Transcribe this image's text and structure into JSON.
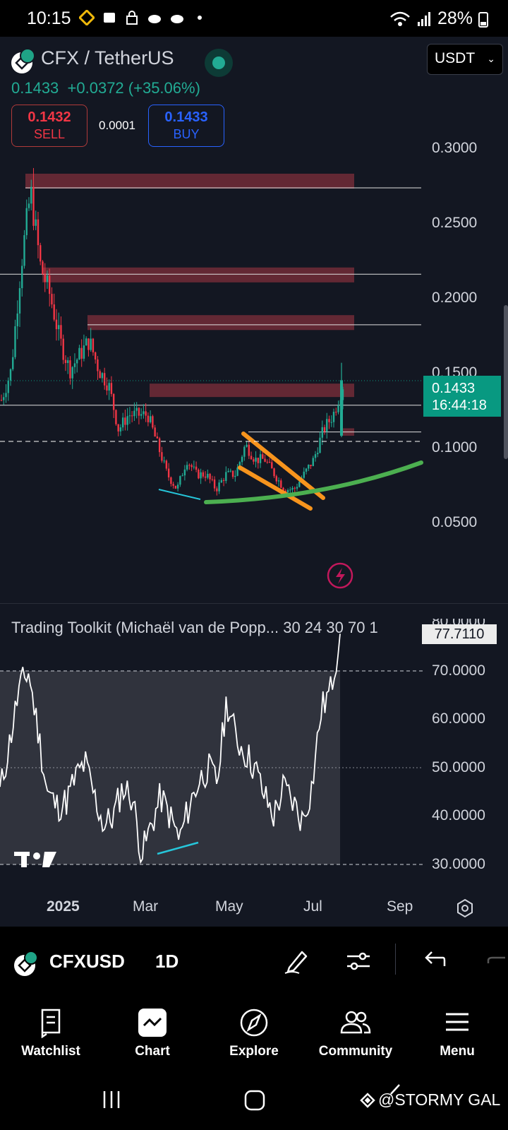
{
  "status_bar": {
    "time": "10:15",
    "battery": "28%"
  },
  "header": {
    "symbol_title": "CFX / TetherUS",
    "currency": "USDT",
    "last_price": "0.1433",
    "change": "+0.0372 (+35.06%)",
    "sell": {
      "price": "0.1432",
      "label": "SELL"
    },
    "spread": "0.0001",
    "buy": {
      "price": "0.1433",
      "label": "BUY"
    }
  },
  "price_axis": {
    "labels": [
      "0.3000",
      "0.2500",
      "0.2000",
      "0.1500",
      "0.1000",
      "0.0500"
    ],
    "current_price": "0.1433",
    "countdown": "16:44:18"
  },
  "indicator": {
    "label": "Trading Toolkit (Michaël van de Popp... 30 24 30 70 1",
    "value_tag": "77.7110",
    "axis_labels": [
      "80.0000",
      "70.0000",
      "60.0000",
      "50.0000",
      "40.0000",
      "30.0000"
    ]
  },
  "time_axis": [
    "2025",
    "Mar",
    "May",
    "Jul",
    "Sep"
  ],
  "toolbar": {
    "symbol": "CFXUSD",
    "interval": "1D"
  },
  "bottom_nav": [
    {
      "label": "Watchlist",
      "icon": "watchlist-icon"
    },
    {
      "label": "Chart",
      "icon": "chart-icon"
    },
    {
      "label": "Explore",
      "icon": "compass-icon"
    },
    {
      "label": "Community",
      "icon": "community-icon"
    },
    {
      "label": "Menu",
      "icon": "menu-icon"
    }
  ],
  "watermark": "@STORMY GAL",
  "colors": {
    "background": "#131722",
    "up": "#22ab94",
    "down": "#f23645",
    "resistance_zone": "#6d2a36",
    "wedge": "#f7941d",
    "curve": "#4caf50",
    "buy": "#2962ff"
  },
  "chart_data": [
    {
      "type": "candlestick",
      "title": "CFX / TetherUS",
      "ylim": [
        0.04,
        0.32
      ],
      "y_ticks": [
        0.3,
        0.25,
        0.2,
        0.15,
        0.1,
        0.05
      ],
      "x_ticks": [
        "2025",
        "Mar",
        "May",
        "Jul",
        "Sep"
      ],
      "approx_close_path": [
        0.13,
        0.15,
        0.22,
        0.27,
        0.22,
        0.2,
        0.17,
        0.15,
        0.16,
        0.17,
        0.15,
        0.14,
        0.11,
        0.12,
        0.12,
        0.12,
        0.1,
        0.08,
        0.07,
        0.09,
        0.08,
        0.08,
        0.07,
        0.08,
        0.08,
        0.1,
        0.09,
        0.09,
        0.08,
        0.07,
        0.07,
        0.08,
        0.09,
        0.11,
        0.12,
        0.14
      ],
      "resistance_zones": [
        [
          0.272,
          0.282
        ],
        [
          0.209,
          0.219
        ],
        [
          0.177,
          0.187
        ],
        [
          0.132,
          0.141
        ],
        [
          0.106,
          0.111
        ]
      ],
      "current_price": 0.1433,
      "high_wick": 0.155
    },
    {
      "type": "line",
      "title": "Trading Toolkit (Michaël van de Popp...",
      "ylim": [
        28,
        82
      ],
      "y_ticks": [
        80,
        70,
        60,
        50,
        40,
        30
      ],
      "levels": [
        70,
        50,
        30
      ],
      "approx_values": [
        45,
        55,
        66,
        70,
        58,
        45,
        42,
        43,
        48,
        51,
        44,
        38,
        40,
        46,
        44,
        32,
        38,
        44,
        40,
        35,
        42,
        47,
        50,
        47,
        64,
        56,
        53,
        50,
        44,
        40,
        46,
        43,
        39,
        46,
        62,
        66,
        77.7
      ]
    }
  ]
}
